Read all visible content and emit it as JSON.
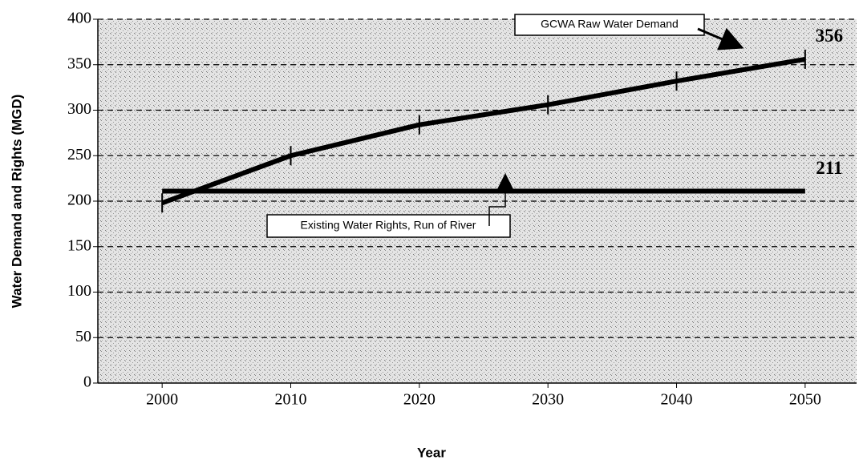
{
  "chart_data": {
    "type": "line",
    "x_label": "Year",
    "y_label": "Water Demand and Rights (MGD)",
    "x": [
      2000,
      2010,
      2020,
      2030,
      2040,
      2050
    ],
    "series": [
      {
        "name": "GCWA Raw Water Demand",
        "color": "#000000",
        "values": [
          198,
          250,
          284,
          306,
          332,
          356
        ]
      },
      {
        "name": "Existing Water Rights, Run of River",
        "color": "#000000",
        "values": [
          211,
          211,
          211,
          211,
          211,
          211
        ]
      }
    ],
    "xlim": [
      1995,
      2054
    ],
    "xticks": [
      2000,
      2010,
      2020,
      2030,
      2040,
      2050
    ],
    "ylim": [
      0,
      400
    ],
    "yticks": [
      0,
      50,
      100,
      150,
      200,
      250,
      300,
      350,
      400
    ],
    "grid": true
  }
}
